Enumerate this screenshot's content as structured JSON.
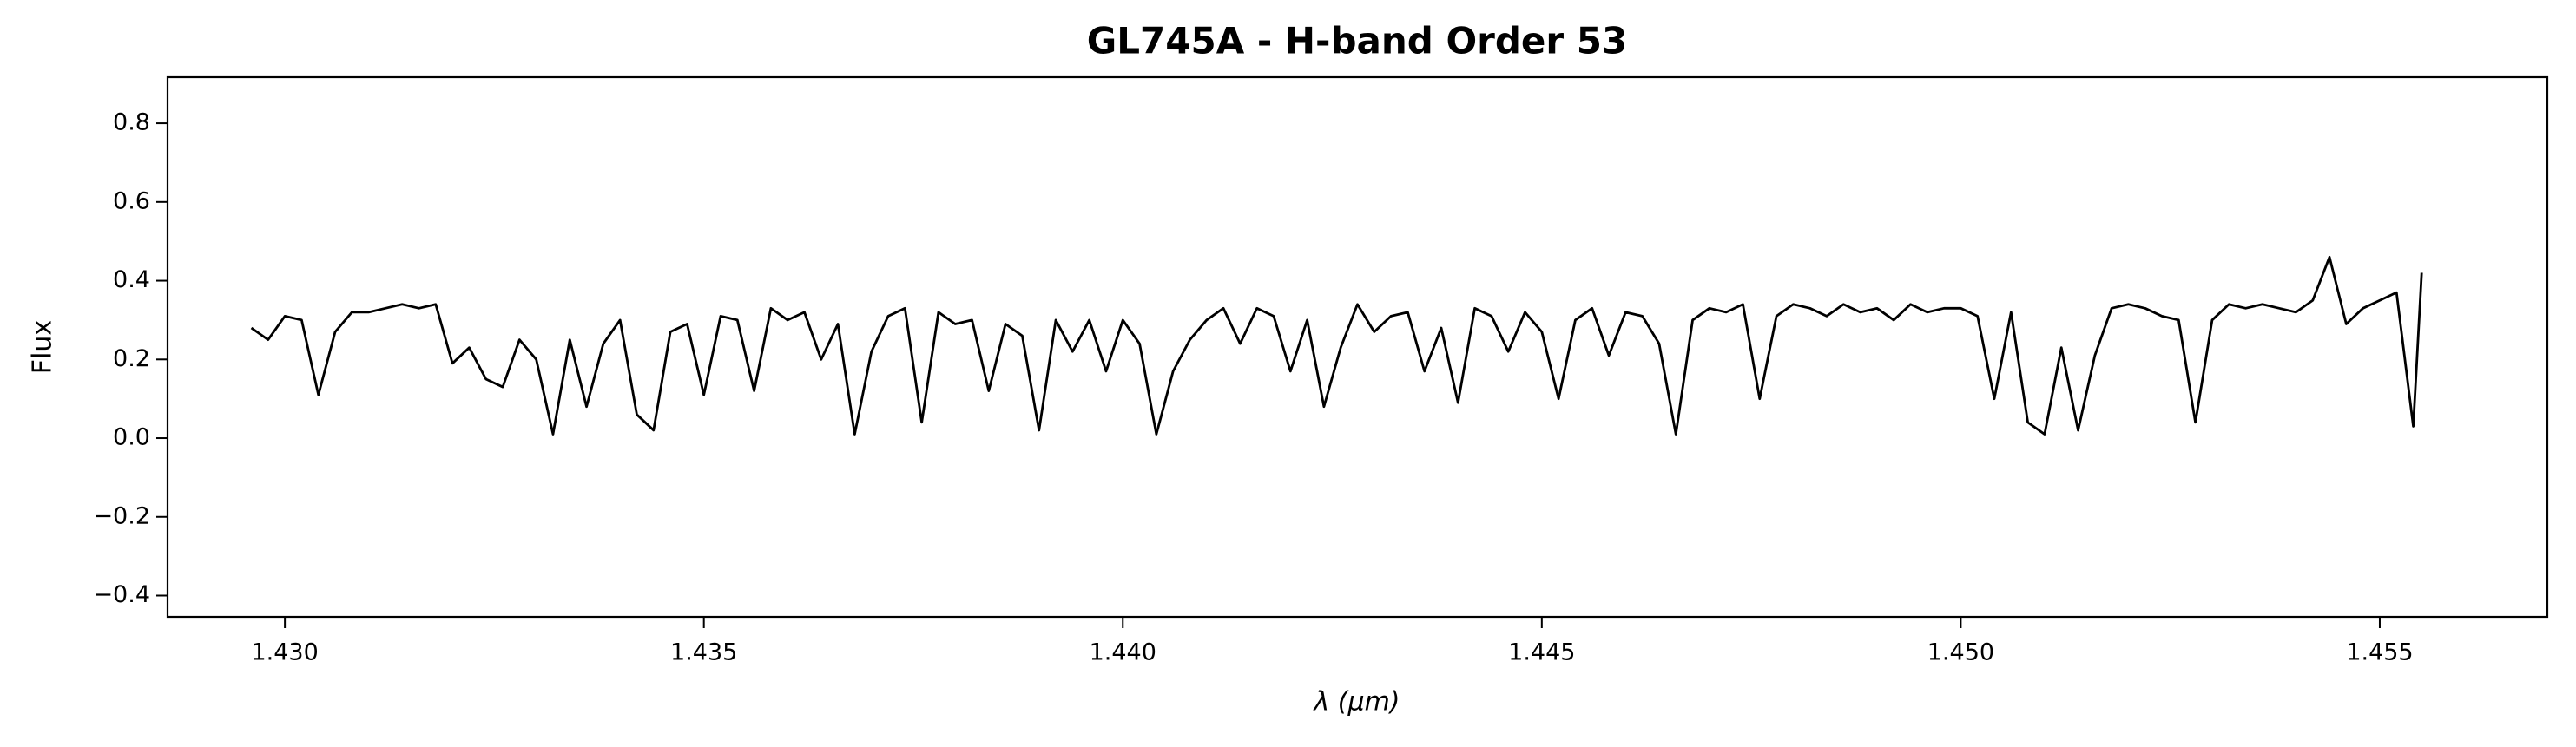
{
  "chart_data": {
    "type": "line",
    "title": "GL745A - H-band Order 53",
    "x_label": "λ (μm)",
    "y_label": "Flux",
    "x": [
      1.4296,
      1.4298,
      1.43,
      1.4302,
      1.4304,
      1.4306,
      1.4308,
      1.431,
      1.4312,
      1.4314,
      1.4316,
      1.4318,
      1.432,
      1.4322,
      1.4324,
      1.4326,
      1.4328,
      1.433,
      1.4332,
      1.4334,
      1.4336,
      1.4338,
      1.434,
      1.4342,
      1.4344,
      1.4346,
      1.4348,
      1.435,
      1.4352,
      1.4354,
      1.4356,
      1.4358,
      1.436,
      1.4362,
      1.4364,
      1.4366,
      1.4368,
      1.437,
      1.4372,
      1.4374,
      1.4376,
      1.4378,
      1.438,
      1.4382,
      1.4384,
      1.4386,
      1.4388,
      1.439,
      1.4392,
      1.4394,
      1.4396,
      1.4398,
      1.44,
      1.4402,
      1.4404,
      1.4406,
      1.4408,
      1.441,
      1.4412,
      1.4414,
      1.4416,
      1.4418,
      1.442,
      1.4422,
      1.4424,
      1.4426,
      1.4428,
      1.443,
      1.4432,
      1.4434,
      1.4436,
      1.4438,
      1.444,
      1.4442,
      1.4444,
      1.4446,
      1.4448,
      1.445,
      1.4452,
      1.4454,
      1.4456,
      1.4458,
      1.446,
      1.4462,
      1.4464,
      1.4466,
      1.4468,
      1.447,
      1.4472,
      1.4474,
      1.4476,
      1.4478,
      1.448,
      1.4482,
      1.4484,
      1.4486,
      1.4488,
      1.449,
      1.4492,
      1.4494,
      1.4496,
      1.4498,
      1.45,
      1.4502,
      1.4504,
      1.4506,
      1.4508,
      1.451,
      1.4512,
      1.4514,
      1.4516,
      1.4518,
      1.452,
      1.4522,
      1.4524,
      1.4526,
      1.4528,
      1.453,
      1.4532,
      1.4534,
      1.4536,
      1.4538,
      1.454,
      1.4542,
      1.4544,
      1.4546,
      1.4548,
      1.455,
      1.4552,
      1.4554,
      1.4555
    ],
    "series": [
      {
        "color": "#000000",
        "values": [
          0.28,
          0.25,
          0.31,
          0.3,
          0.11,
          0.27,
          0.32,
          0.32,
          0.33,
          0.34,
          0.33,
          0.34,
          0.19,
          0.23,
          0.15,
          0.13,
          0.25,
          0.2,
          0.01,
          0.25,
          0.08,
          0.24,
          0.3,
          0.06,
          0.02,
          0.27,
          0.29,
          0.11,
          0.31,
          0.3,
          0.12,
          0.33,
          0.3,
          0.32,
          0.2,
          0.29,
          0.01,
          0.22,
          0.31,
          0.33,
          0.04,
          0.32,
          0.29,
          0.3,
          0.12,
          0.29,
          0.26,
          0.02,
          0.3,
          0.22,
          0.3,
          0.17,
          0.3,
          0.24,
          0.01,
          0.17,
          0.25,
          0.3,
          0.33,
          0.24,
          0.33,
          0.31,
          0.17,
          0.3,
          0.08,
          0.23,
          0.34,
          0.27,
          0.31,
          0.32,
          0.17,
          0.28,
          0.09,
          0.33,
          0.31,
          0.22,
          0.32,
          0.27,
          0.1,
          0.3,
          0.33,
          0.21,
          0.32,
          0.31,
          0.24,
          0.01,
          0.3,
          0.33,
          0.32,
          0.34,
          0.1,
          0.31,
          0.34,
          0.33,
          0.31,
          0.34,
          0.32,
          0.33,
          0.3,
          0.34,
          0.32,
          0.33,
          0.33,
          0.31,
          0.1,
          0.32,
          0.04,
          0.01,
          0.23,
          0.02,
          0.21,
          0.33,
          0.34,
          0.33,
          0.31,
          0.3,
          0.04,
          0.3,
          0.34,
          0.33,
          0.34,
          0.33,
          0.32,
          0.35,
          0.46,
          0.29,
          0.33,
          0.35,
          0.37,
          0.03,
          0.42
        ]
      }
    ],
    "xlim": [
      1.4286,
      1.457
    ],
    "xticks": [
      {
        "value": 1.43,
        "label": "1.430"
      },
      1.435,
      {
        "value": 1.44,
        "label": "1.440"
      },
      1.445,
      {
        "value": 1.45,
        "label": "1.450"
      },
      1.455
    ],
    "ylim": [
      -0.454,
      0.917
    ],
    "yticks": [
      {
        "value": -0.4,
        "label": "−0.4"
      },
      {
        "value": -0.2,
        "label": "−0.2"
      },
      {
        "value": 0.0,
        "label": "0.0"
      },
      0.2,
      0.4,
      0.6,
      0.8
    ]
  }
}
